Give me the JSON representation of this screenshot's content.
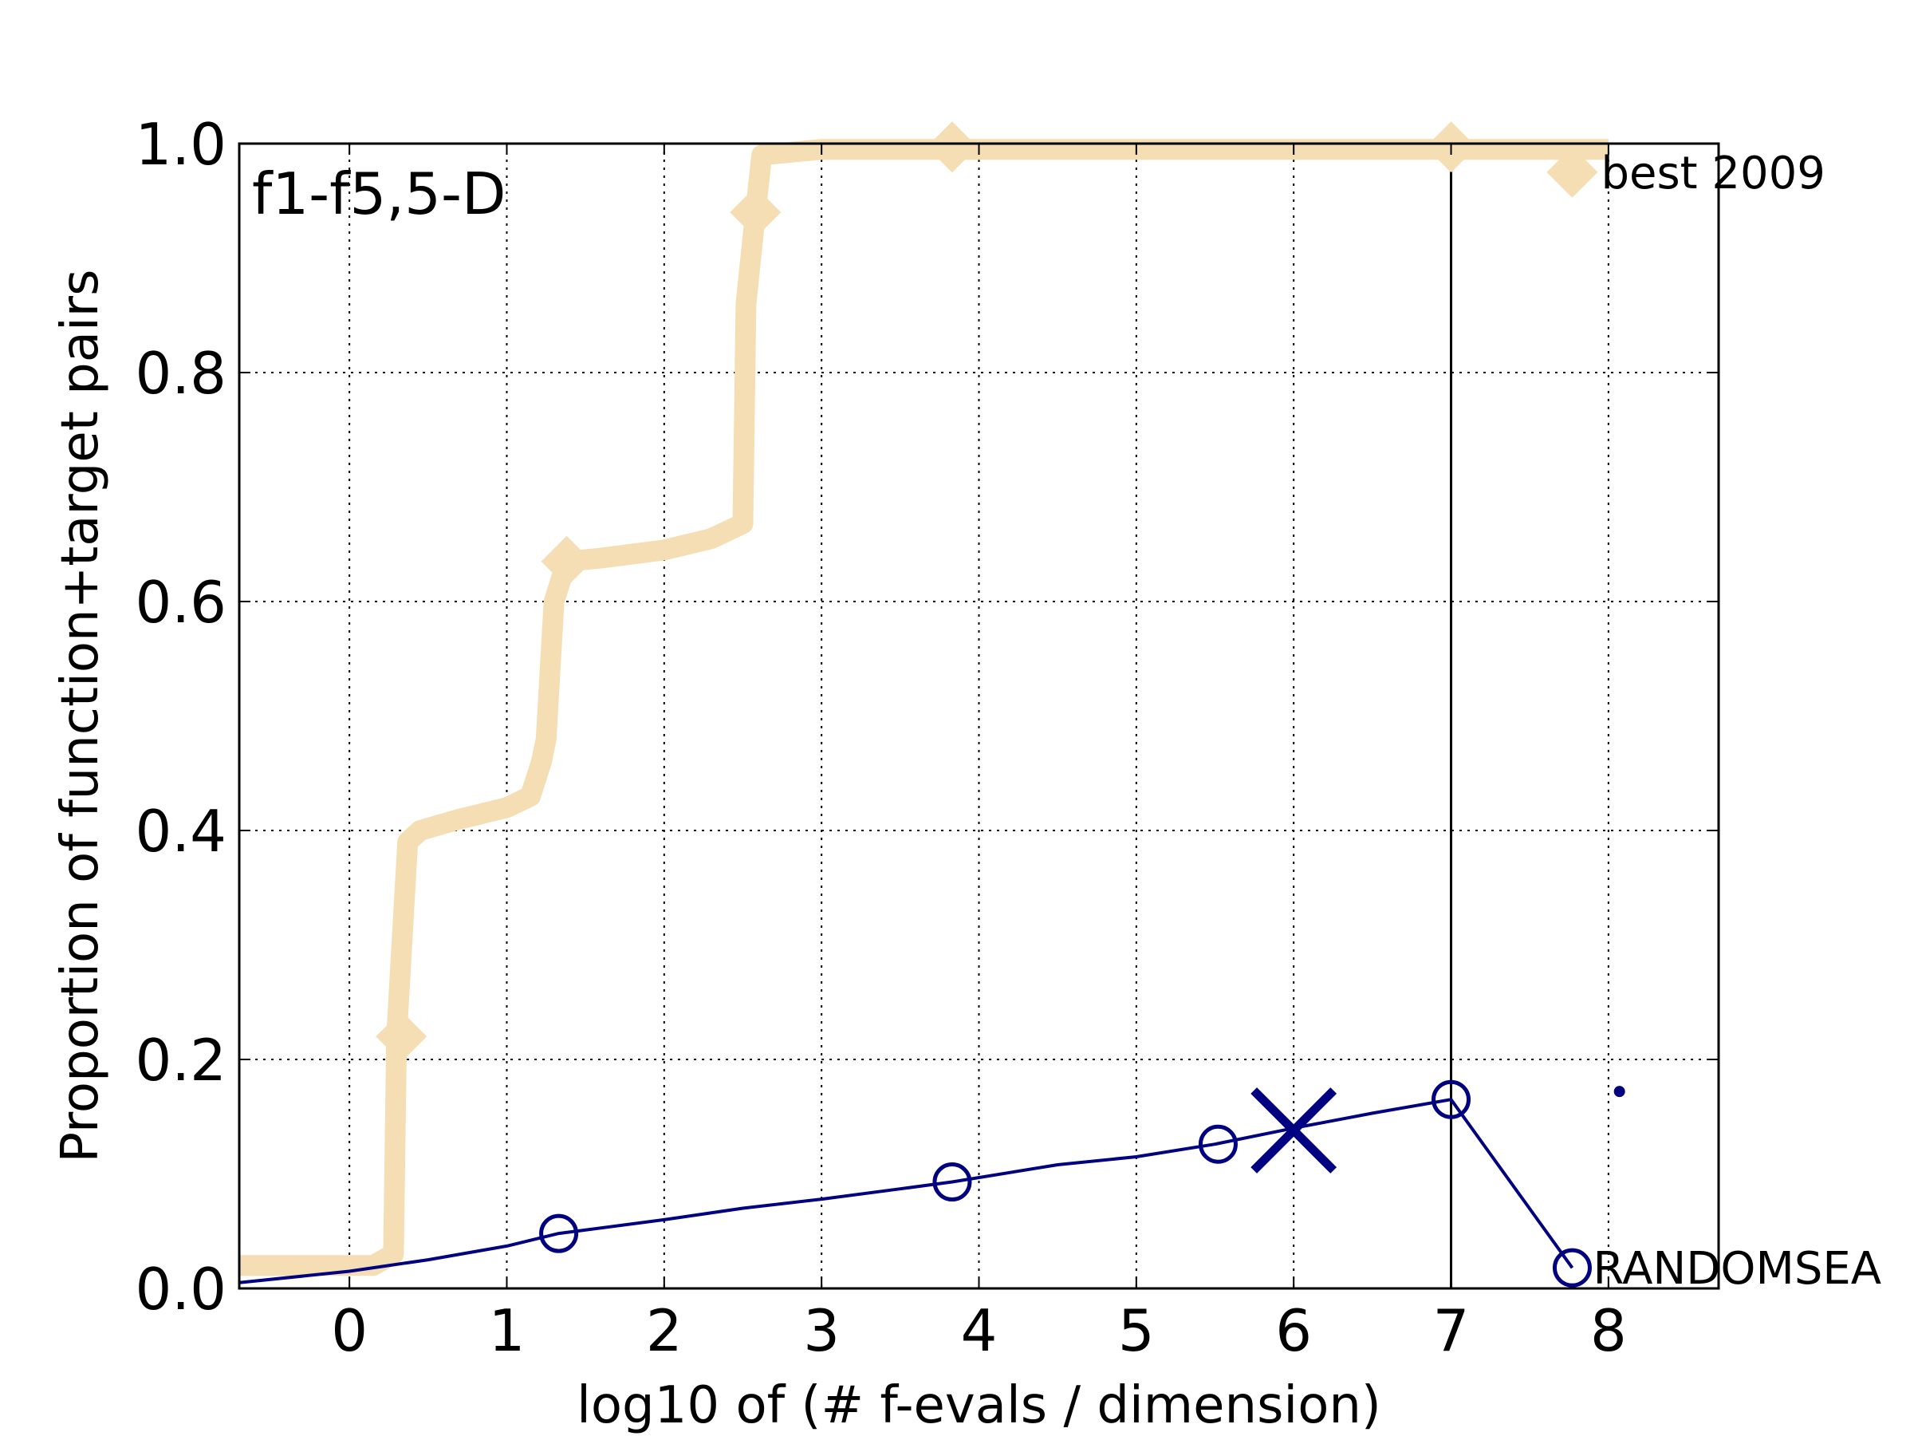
{
  "chart_data": {
    "type": "line",
    "title": "",
    "panel_label": "f1-f5,5-D",
    "xlabel": "log10 of (# f-evals / dimension)",
    "ylabel": "Proportion of function+target pairs",
    "xlim": [
      -0.7,
      8.7
    ],
    "ylim": [
      0.0,
      1.0
    ],
    "xticks": [
      "0",
      "1",
      "2",
      "3",
      "4",
      "5",
      "6",
      "7",
      "8"
    ],
    "yticks": [
      "0.0",
      "0.2",
      "0.4",
      "0.6",
      "0.8",
      "1.0"
    ],
    "grid": true,
    "vertical_line_x": 7,
    "series": [
      {
        "name": "best 2009",
        "color": "#f5deb3",
        "line": [
          [
            -0.7,
            0.02
          ],
          [
            0.15,
            0.02
          ],
          [
            0.28,
            0.03
          ],
          [
            0.3,
            0.22
          ],
          [
            0.37,
            0.39
          ],
          [
            0.45,
            0.4
          ],
          [
            0.7,
            0.41
          ],
          [
            1.0,
            0.42
          ],
          [
            1.15,
            0.43
          ],
          [
            1.22,
            0.46
          ],
          [
            1.25,
            0.48
          ],
          [
            1.3,
            0.6
          ],
          [
            1.38,
            0.635
          ],
          [
            1.6,
            0.638
          ],
          [
            2.0,
            0.645
          ],
          [
            2.3,
            0.655
          ],
          [
            2.5,
            0.668
          ],
          [
            2.52,
            0.86
          ],
          [
            2.58,
            0.94
          ],
          [
            2.62,
            0.99
          ],
          [
            3.0,
            0.995
          ],
          [
            8.0,
            0.995
          ]
        ],
        "markers": [
          [
            0.33,
            0.22
          ],
          [
            1.38,
            0.635
          ],
          [
            2.58,
            0.94
          ],
          [
            3.83,
            0.997
          ],
          [
            7.0,
            0.997
          ],
          [
            7.77,
            0.975
          ]
        ]
      },
      {
        "name": "RANDOMSEA",
        "color": "#000080",
        "line": [
          [
            -0.7,
            0.005
          ],
          [
            0.0,
            0.015
          ],
          [
            0.5,
            0.025
          ],
          [
            1.0,
            0.037
          ],
          [
            1.33,
            0.048
          ],
          [
            2.0,
            0.06
          ],
          [
            2.5,
            0.07
          ],
          [
            3.0,
            0.078
          ],
          [
            3.5,
            0.087
          ],
          [
            3.83,
            0.093
          ],
          [
            4.5,
            0.108
          ],
          [
            5.0,
            0.115
          ],
          [
            5.5,
            0.126
          ],
          [
            6.0,
            0.14
          ],
          [
            6.5,
            0.153
          ],
          [
            7.0,
            0.165
          ],
          [
            7.77,
            0.018
          ]
        ],
        "markers": [
          [
            1.33,
            0.048
          ],
          [
            3.83,
            0.093
          ],
          [
            5.52,
            0.126
          ],
          [
            7.0,
            0.165
          ],
          [
            7.77,
            0.018
          ]
        ],
        "cross_marker": [
          6.0,
          0.138
        ],
        "dot_marker": [
          8.07,
          0.172
        ]
      }
    ]
  }
}
